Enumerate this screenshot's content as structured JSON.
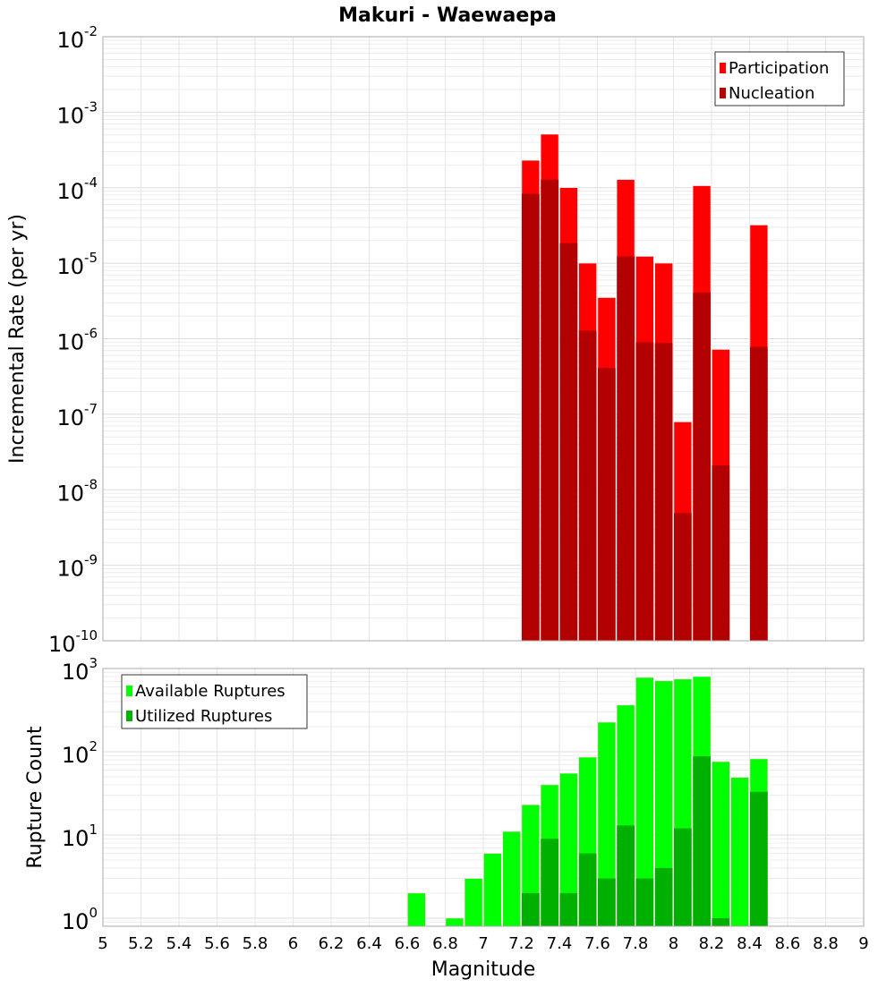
{
  "chart_data": [
    {
      "type": "bar",
      "title": "Makuri - Waewaepa",
      "xlabel": "",
      "ylabel": "Incremental Rate (per yr)",
      "yscale": "log",
      "ylim": [
        1e-10,
        0.01
      ],
      "xlim": [
        5,
        9
      ],
      "bin_width": 0.1,
      "grid": true,
      "legend_position": "top-right",
      "y_tick_exponents": [
        "-10",
        "-9",
        "-8",
        "-7",
        "-6",
        "-5",
        "-4",
        "-3",
        "-2"
      ],
      "x": [
        7.25,
        7.35,
        7.45,
        7.55,
        7.65,
        7.75,
        7.85,
        7.95,
        8.05,
        8.15,
        8.25,
        8.45
      ],
      "series": [
        {
          "name": "Participation",
          "color": "#ff0000",
          "values": [
            0.00023,
            0.00051,
            0.0001,
            1e-05,
            3.5e-06,
            0.000128,
            1.23e-05,
            1e-05,
            7.9e-08,
            0.000106,
            7.2e-07,
            3.2e-05
          ]
        },
        {
          "name": "Nucleation",
          "color": "#b30000",
          "values": [
            8.3e-05,
            0.000128,
            1.85e-05,
            1.28e-06,
            4.1e-07,
            1.23e-05,
            9e-07,
            8.8e-07,
            4.9e-09,
            4.1e-06,
            2.1e-08,
            7.8e-07
          ]
        }
      ]
    },
    {
      "type": "bar",
      "xlabel": "Magnitude",
      "ylabel": "Rupture Count",
      "yscale": "log",
      "ylim": [
        0.8,
        1000
      ],
      "xlim": [
        5,
        9
      ],
      "bin_width": 0.1,
      "grid": true,
      "legend_position": "top-left",
      "y_tick_exponents": [
        "0",
        "1",
        "2",
        "3"
      ],
      "x_ticks": [
        "5",
        "5.2",
        "5.4",
        "5.6",
        "5.8",
        "6",
        "6.2",
        "6.4",
        "6.6",
        "6.8",
        "7",
        "7.2",
        "7.4",
        "7.6",
        "7.8",
        "8",
        "8.2",
        "8.4",
        "8.6",
        "8.8",
        "9"
      ],
      "x": [
        6.65,
        6.85,
        6.95,
        7.05,
        7.15,
        7.25,
        7.35,
        7.45,
        7.55,
        7.65,
        7.75,
        7.85,
        7.95,
        8.05,
        8.15,
        8.25,
        8.35,
        8.45
      ],
      "series": [
        {
          "name": "Available Ruptures",
          "color": "#00ff00",
          "values": [
            2,
            1,
            3,
            6,
            11,
            23,
            40,
            55,
            86,
            226,
            363,
            780,
            710,
            745,
            800,
            76,
            49,
            82
          ]
        },
        {
          "name": "Utilized Ruptures",
          "color": "#00b000",
          "values": [
            0,
            0,
            0,
            0,
            0,
            2,
            9,
            2,
            6,
            3,
            13,
            3,
            4,
            12,
            88,
            1,
            0,
            33
          ]
        }
      ]
    }
  ]
}
